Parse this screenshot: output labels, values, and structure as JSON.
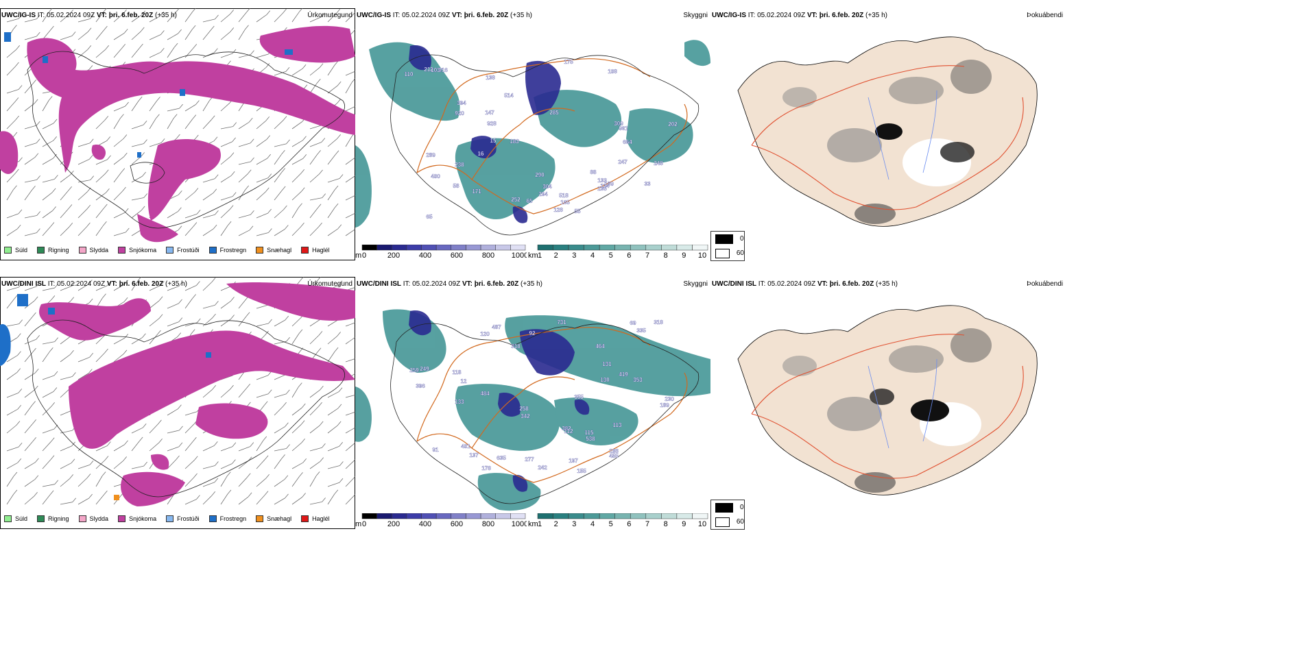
{
  "rows": [
    {
      "id": "row1",
      "model": "UWC/IG-IS",
      "it_label": "IT:",
      "it_value": "05.02.2024 09Z",
      "vt_label": "VT:",
      "vt_value": "þri. 6.feb. 20Z",
      "lead": "(+35 h)",
      "precip_labels": [
        "252",
        "304",
        "285",
        "110",
        "202",
        "400",
        "294",
        "289",
        "309",
        "394",
        "238",
        "33",
        "65",
        "55",
        "108",
        "165",
        "133",
        "114",
        "248",
        "961",
        "916",
        "664",
        "920",
        "928",
        "518",
        "171",
        "175",
        "128",
        "138",
        "147",
        "212",
        "88",
        "247",
        "290",
        "235",
        "514",
        "103",
        "189",
        "183",
        "16",
        "65",
        "58",
        "15"
      ],
      "snow_label_count": 0
    },
    {
      "id": "row2",
      "model": "UWC/DINI ISL",
      "it_label": "IT:",
      "it_value": "05.02.2024 09Z",
      "vt_label": "VT:",
      "vt_value": "þri. 6.feb. 20Z",
      "lead": "(+35 h)",
      "precip_labels": [
        "155",
        "120",
        "401",
        "118",
        "419",
        "197",
        "189",
        "484",
        "342",
        "137",
        "91",
        "259",
        "258",
        "382",
        "130",
        "69",
        "396",
        "335",
        "113",
        "353",
        "188",
        "112",
        "178",
        "455",
        "355",
        "131",
        "133",
        "12",
        "242",
        "318",
        "538",
        "318",
        "464",
        "635",
        "487",
        "277",
        "731",
        "249",
        "230",
        "115",
        "92"
      ],
      "snow_label_count": 0
    }
  ],
  "panel_titles": {
    "precip": "Úrkomutegund",
    "cloud": "Skyggni",
    "fog": "Þokuábendi"
  },
  "precip_legend": [
    {
      "label": "Súld",
      "color": "#90ee90"
    },
    {
      "label": "Rigning",
      "color": "#2e8b57"
    },
    {
      "label": "Slydda",
      "color": "#f4a6c8"
    },
    {
      "label": "Snjókoma",
      "color": "#c040a0"
    },
    {
      "label": "Frostúði",
      "color": "#87b8f0"
    },
    {
      "label": "Frostregn",
      "color": "#1e6fc8"
    },
    {
      "label": "Snæhagl",
      "color": "#f0901e"
    },
    {
      "label": "Haglél",
      "color": "#e01818"
    }
  ],
  "cloud_base_bar": {
    "unit": "m",
    "ticks": [
      "0",
      "200",
      "400",
      "600",
      "800",
      "1000"
    ],
    "colors": [
      "#000000",
      "#1a1a70",
      "#2a2a90",
      "#3c3ca8",
      "#5050b4",
      "#6868c0",
      "#8080c8",
      "#9898d4",
      "#b0b0dc",
      "#c8c8e8",
      "#e0e0f4"
    ]
  },
  "visibility_bar": {
    "unit": "km",
    "ticks": [
      "1",
      "2",
      "3",
      "4",
      "5",
      "6",
      "7",
      "8",
      "9",
      "10"
    ],
    "colors": [
      "#1e7070",
      "#2a8080",
      "#3a8c8c",
      "#4c9a98",
      "#60a8a4",
      "#78b4b0",
      "#90c2be",
      "#a8d0cc",
      "#c0dcd8",
      "#d8eae8",
      "#f0f6f6"
    ]
  },
  "fog_legend": [
    {
      "label": "0",
      "color": "#000000"
    },
    {
      "label": "60",
      "color": "#ffffff"
    }
  ],
  "colors": {
    "snow": "#c040a0",
    "freezing": "#1e6fc8",
    "cloud_teal": "#3a9090",
    "low_cloud": "#2a2a90",
    "roads": "#d2691e",
    "land_tan": "#f2e2d2",
    "coast": "#000000"
  }
}
